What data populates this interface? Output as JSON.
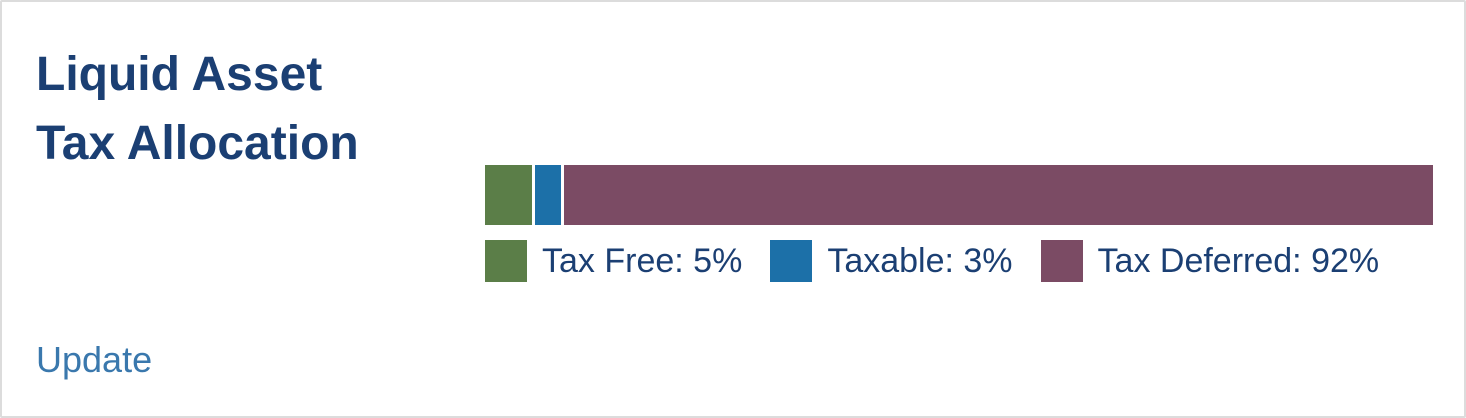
{
  "card": {
    "title_line1": "Liquid Asset",
    "title_line2": "Tax Allocation",
    "update_link": "Update"
  },
  "colors": {
    "tax_free": "#5b7e48",
    "taxable": "#1c70a8",
    "tax_deferred": "#7b4b64",
    "title": "#1b3f73",
    "link": "#3a78ad"
  },
  "chart_data": {
    "type": "bar",
    "orientation": "horizontal-stacked",
    "categories": [
      "Tax Free",
      "Taxable",
      "Tax Deferred"
    ],
    "values": [
      5,
      3,
      92
    ],
    "unit": "%",
    "legend_labels": [
      "Tax Free: 5%",
      "Taxable: 3%",
      "Tax Deferred: 92%"
    ],
    "colors": [
      "#5b7e48",
      "#1c70a8",
      "#7b4b64"
    ],
    "legend_placement": "bottom-left"
  }
}
